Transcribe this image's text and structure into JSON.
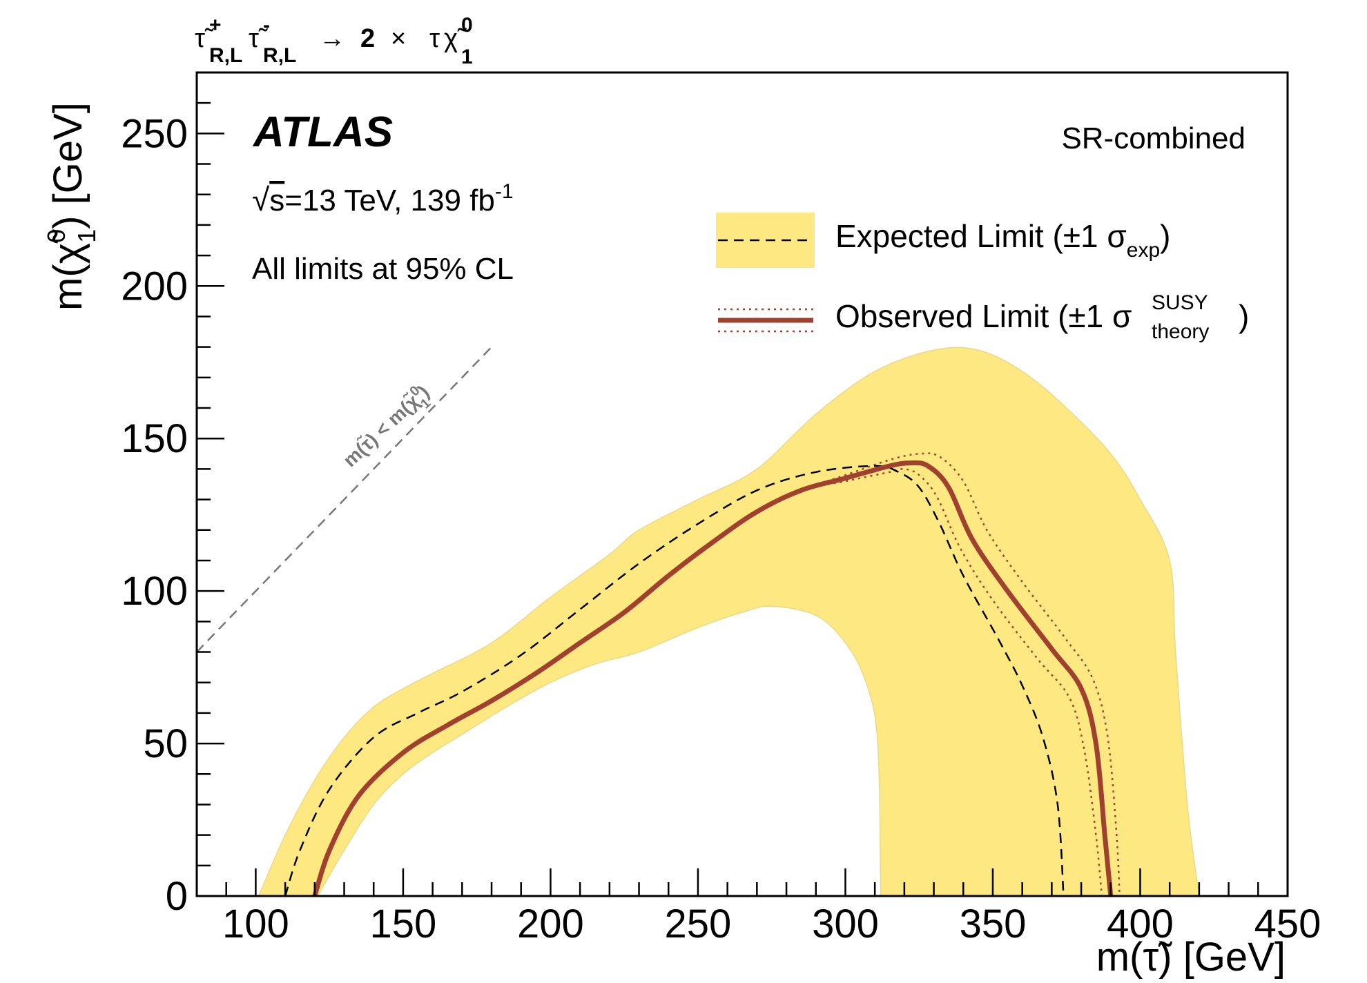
{
  "chart_data": {
    "type": "line",
    "header": {
      "process": "τ̃⁺R,L τ̃⁻R,L → 2 × τχ̃⁰₁",
      "stau": "τ̃",
      "stau_charges": [
        "+",
        "-"
      ],
      "stau_subscript": "R,L",
      "arrow": "→",
      "factor": "2",
      "times": "×",
      "tau": "τ",
      "neutralino": "χ̃",
      "neutralino_sup": "0",
      "neutralino_sub": "1"
    },
    "experiment": "ATLAS",
    "energy_lumi": {
      "sqrt": "√",
      "s": "s",
      "energy": "=13 TeV, 139 fb",
      "lumi_sup": "-1"
    },
    "cl_text": "All limits at 95% CL",
    "region": "SR-combined",
    "xlabel": "m(τ̃) [GeV]",
    "ylabel": {
      "prefix": "m(",
      "symbol": "χ̃",
      "sup": "0",
      "sub": "1",
      "suffix": ") [GeV]"
    },
    "xlim": [
      80,
      450
    ],
    "ylim": [
      0,
      270
    ],
    "xticks": [
      100,
      150,
      200,
      250,
      300,
      350,
      400,
      450
    ],
    "yticks": [
      0,
      50,
      100,
      150,
      200,
      250
    ],
    "kinematic_line": {
      "label_prefix": "m(τ̃) < m(",
      "label_symbol": "χ̃",
      "label_sup": "0",
      "label_sub": "1",
      "label_suffix": ")",
      "x": [
        80,
        180
      ],
      "y": [
        80,
        180
      ]
    },
    "legend": {
      "expected": {
        "main": "Expected Limit (±1 σ",
        "sub": "exp",
        "close": ")"
      },
      "observed": {
        "main": "Observed Limit (±1 σ",
        "sup": "SUSY",
        "sub": "theory",
        "close": ")"
      }
    },
    "series": [
      {
        "name": "Expected band (±1σ_exp)",
        "color": "#fde882",
        "outer_x": [
          101,
          110,
          120,
          130,
          140,
          150,
          160,
          180,
          200,
          220,
          230,
          250,
          270,
          290,
          310,
          330,
          345,
          360,
          375,
          390,
          400,
          410,
          412,
          416,
          420
        ],
        "outer_y": [
          0,
          20,
          38,
          52,
          62,
          68,
          73,
          83,
          98,
          112,
          120,
          130,
          140,
          158,
          172,
          179,
          179,
          172,
          160,
          145,
          130,
          110,
          80,
          30,
          0
        ],
        "inner_x": [
          312,
          311,
          307,
          300,
          290,
          275,
          265,
          250,
          230,
          215,
          200,
          185,
          170,
          160,
          150,
          140,
          130,
          124,
          121
        ],
        "inner_y": [
          0,
          50,
          70,
          83,
          92,
          95,
          93,
          88,
          80,
          76,
          70,
          62,
          53,
          47,
          40,
          30,
          15,
          5,
          0
        ]
      },
      {
        "name": "Expected Limit",
        "color": "#000000",
        "x": [
          110,
          115,
          125,
          140,
          155,
          170,
          190,
          210,
          230,
          250,
          270,
          290,
          310,
          318,
          325,
          332,
          340,
          352,
          360,
          367,
          372,
          374
        ],
        "y": [
          0,
          15,
          35,
          52,
          60,
          67,
          79,
          94,
          109,
          122,
          133,
          139,
          141,
          139,
          134,
          122,
          105,
          84,
          69,
          52,
          30,
          0
        ]
      },
      {
        "name": "Observed Limit",
        "color": "#a0402e",
        "x": [
          120,
          125,
          135,
          150,
          165,
          180,
          195,
          210,
          225,
          240,
          255,
          270,
          285,
          300,
          315,
          322,
          328,
          335,
          343,
          355,
          370,
          380,
          385,
          388,
          390
        ],
        "y": [
          0,
          15,
          33,
          47,
          56,
          64,
          73,
          83,
          93,
          105,
          116,
          126,
          133,
          137,
          141,
          142,
          141,
          134,
          117,
          100,
          81,
          68,
          50,
          20,
          0
        ]
      },
      {
        "name": "Observed +1σ theory",
        "color": "#a0402e",
        "x": [
          120,
          125,
          135,
          150,
          165,
          180,
          195,
          210,
          225,
          240,
          255,
          270,
          285,
          300,
          315,
          325,
          332,
          340,
          348,
          360,
          375,
          384,
          389,
          392,
          393
        ],
        "y": [
          0,
          15,
          33,
          47,
          56,
          64,
          73,
          83,
          93,
          105,
          116,
          126,
          133,
          138,
          143,
          145,
          144,
          136,
          120,
          103,
          84,
          71,
          52,
          20,
          0
        ]
      },
      {
        "name": "Observed −1σ theory",
        "color": "#a0402e",
        "x": [
          120,
          125,
          135,
          150,
          165,
          180,
          195,
          210,
          225,
          240,
          255,
          270,
          285,
          300,
          315,
          320,
          325,
          331,
          339,
          350,
          365,
          376,
          381,
          385,
          387
        ],
        "y": [
          0,
          15,
          33,
          47,
          56,
          64,
          73,
          83,
          93,
          105,
          116,
          126,
          133,
          136,
          139,
          140,
          138,
          131,
          114,
          97,
          78,
          65,
          48,
          20,
          0
        ]
      }
    ]
  }
}
